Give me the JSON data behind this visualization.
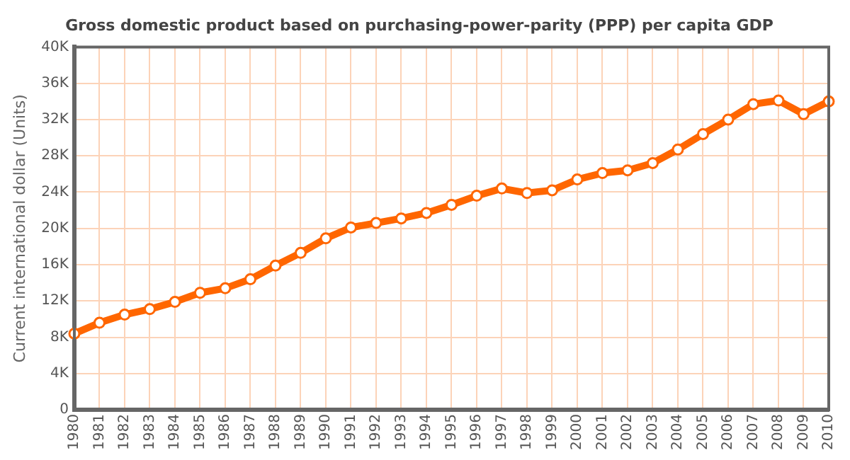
{
  "chart_data": {
    "type": "line",
    "title": "Gross domestic product based on purchasing-power-parity (PPP) per capita GDP",
    "ylabel": "Current international dollar (Units)",
    "categories": [
      "1980",
      "1981",
      "1982",
      "1983",
      "1984",
      "1985",
      "1986",
      "1987",
      "1988",
      "1989",
      "1990",
      "1991",
      "1992",
      "1993",
      "1994",
      "1995",
      "1996",
      "1997",
      "1998",
      "1999",
      "2000",
      "2001",
      "2002",
      "2003",
      "2004",
      "2005",
      "2006",
      "2007",
      "2008",
      "2009",
      "2010"
    ],
    "series": [
      {
        "color": "#ff6600",
        "values": [
          8400,
          9600,
          10500,
          11100,
          11900,
          12900,
          13400,
          14400,
          15900,
          17300,
          18900,
          20100,
          20600,
          21100,
          21700,
          22600,
          23600,
          24400,
          23900,
          24200,
          25400,
          26100,
          26400,
          27200,
          28700,
          30400,
          32000,
          33700,
          34100,
          32600,
          34000
        ]
      }
    ],
    "ylim": [
      0,
      40000
    ],
    "yticks": [
      {
        "value": 0,
        "label": "0"
      },
      {
        "value": 4000,
        "label": "4K"
      },
      {
        "value": 8000,
        "label": "8K"
      },
      {
        "value": 12000,
        "label": "12K"
      },
      {
        "value": 16000,
        "label": "16K"
      },
      {
        "value": 20000,
        "label": "20K"
      },
      {
        "value": 24000,
        "label": "24K"
      },
      {
        "value": 28000,
        "label": "28K"
      },
      {
        "value": 32000,
        "label": "32K"
      },
      {
        "value": 36000,
        "label": "36K"
      },
      {
        "value": 40000,
        "label": "40K"
      }
    ],
    "grid": true,
    "marker": "circle",
    "line_style": "solid",
    "legend": false
  }
}
